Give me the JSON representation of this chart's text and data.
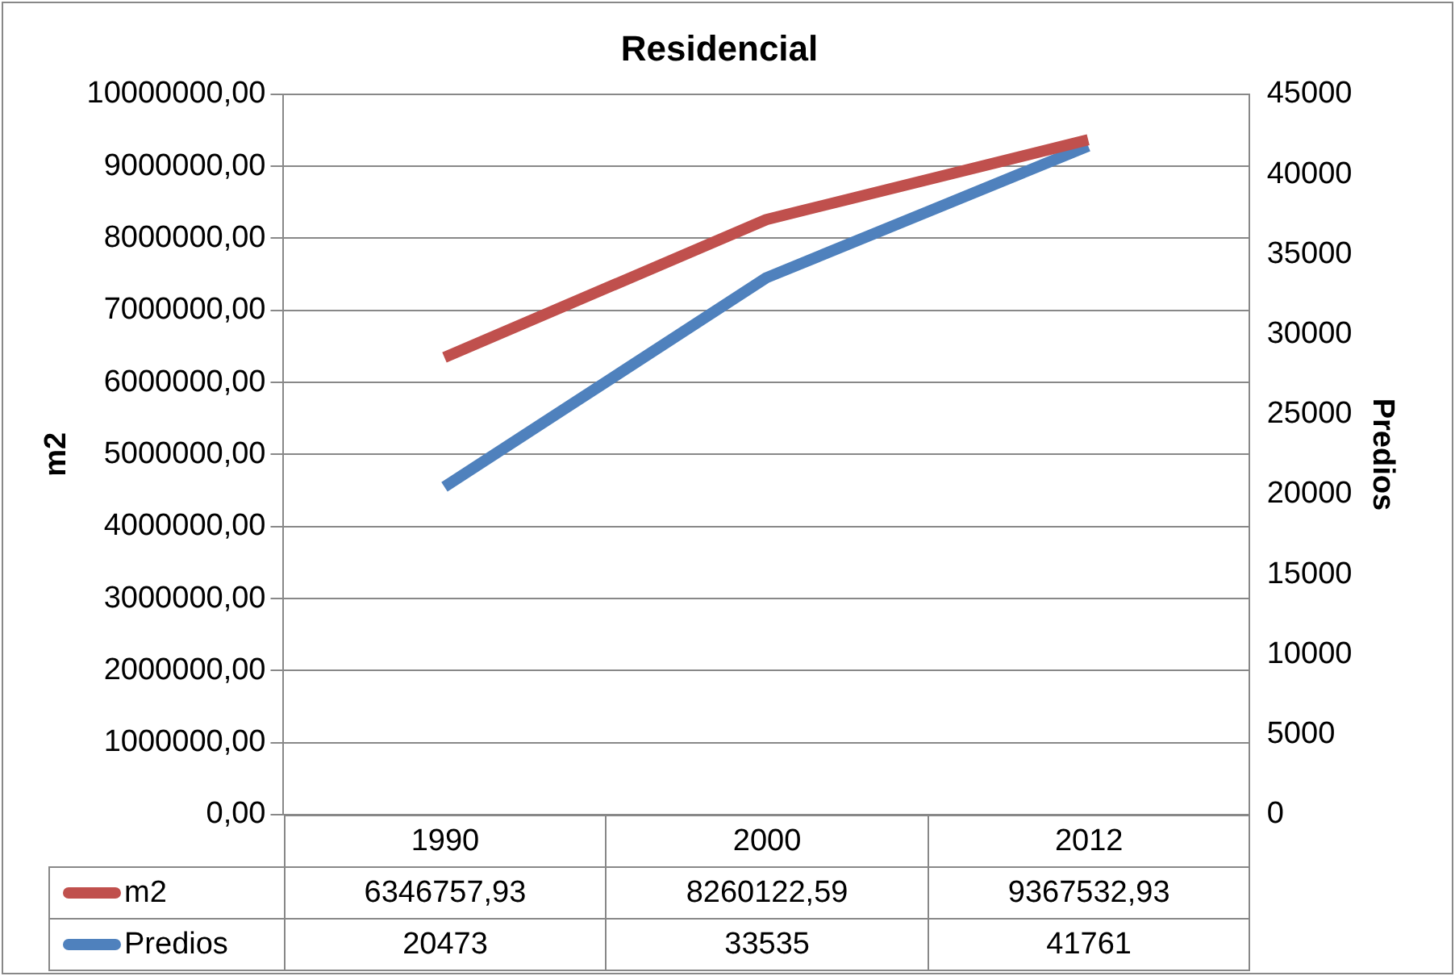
{
  "chart_data": {
    "type": "line",
    "title": "Residencial",
    "ylabel": "m2",
    "y2label": "Predios",
    "categories": [
      "1990",
      "2000",
      "2012"
    ],
    "series": [
      {
        "name": "m2",
        "color": "#c0504d",
        "values": [
          6346757.93,
          8260122.59,
          9367532.93
        ],
        "value_labels": [
          "6346757,93",
          "8260122,59",
          "9367532,93"
        ]
      },
      {
        "name": "Predios",
        "color": "#4f81bd",
        "axis": "y2",
        "values": [
          20473,
          33535,
          41761
        ],
        "value_labels": [
          "20473",
          "33535",
          "41761"
        ]
      }
    ],
    "ylim": [
      0,
      10000000
    ],
    "yticks": [
      {
        "value": 0,
        "label": "0,00"
      },
      {
        "value": 1000000,
        "label": "1000000,00"
      },
      {
        "value": 2000000,
        "label": "2000000,00"
      },
      {
        "value": 3000000,
        "label": "3000000,00"
      },
      {
        "value": 4000000,
        "label": "4000000,00"
      },
      {
        "value": 5000000,
        "label": "5000000,00"
      },
      {
        "value": 6000000,
        "label": "6000000,00"
      },
      {
        "value": 7000000,
        "label": "7000000,00"
      },
      {
        "value": 8000000,
        "label": "8000000,00"
      },
      {
        "value": 9000000,
        "label": "9000000,00"
      },
      {
        "value": 10000000,
        "label": "10000000,00"
      }
    ],
    "y2lim": [
      0,
      45000
    ],
    "y2ticks": [
      0,
      5000,
      10000,
      15000,
      20000,
      25000,
      30000,
      35000,
      40000,
      45000
    ],
    "grid": "y",
    "legend": "bottom",
    "marker": "none",
    "line_style": "solid"
  }
}
